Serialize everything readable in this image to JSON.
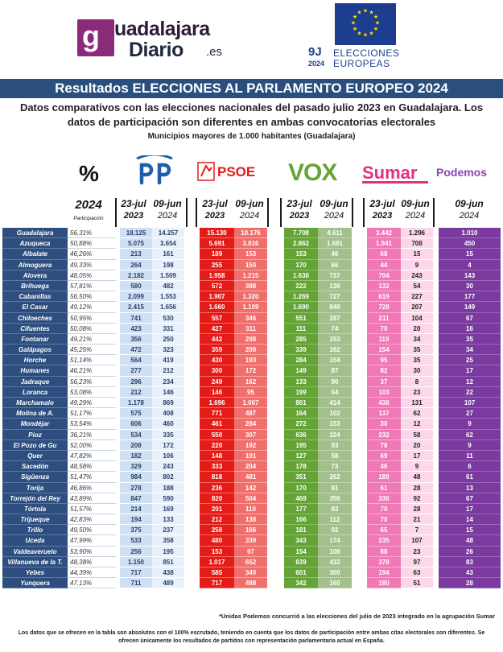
{
  "brand": {
    "g_letter": "g",
    "name_top": "uadalajara",
    "name_bottom": "Diario",
    "tld": ".es"
  },
  "election_logo": {
    "date": "9J",
    "year": "2024",
    "line1": "ELECCIONES",
    "line2": "EUROPEAS"
  },
  "title": "Resultados ELECCIONES AL PARLAMENTO EUROPEO 2024",
  "subtitle": "Datos comparativos con las elecciones nacionales del pasado julio 2023 en Guadalajara. Los datos de participación son diferentes en ambas convocatorias electorales",
  "subtitle2": "Municipios mayores de 1.000 habitantes (Guadalajara)",
  "percent_symbol": "%",
  "parties": {
    "pp": "PP",
    "psoe": "PSOE",
    "vox": "VOX",
    "sumar": "Sumar",
    "podemos": "Podemos"
  },
  "headers": {
    "year": "2024",
    "participation": "Participación",
    "jul_top": "23-jul",
    "jul_bottom": "2023",
    "jun_top": "09-jun",
    "jun_bottom": "2024"
  },
  "colors": {
    "header_blue": "#2a4f7d",
    "pp_blue": "#1d5fab",
    "psoe_red": "#e31c17",
    "vox_green": "#64a436",
    "sumar_pink": "#e5307b",
    "podemos_purple": "#7b3a9f"
  },
  "rows": [
    {
      "mun": "Guadalajara",
      "part": "56,31%",
      "pp23": "18.125",
      "pp24": "14.257",
      "ps23": "15.130",
      "ps24": "10.176",
      "vx23": "7.708",
      "vx24": "4.611",
      "sm23": "3.442",
      "sm24": "1.296",
      "pd": "1.010"
    },
    {
      "mun": "Azuqueca",
      "part": "50,88%",
      "pp23": "5.075",
      "pp24": "3.654",
      "ps23": "5.691",
      "ps24": "3.816",
      "vx23": "2.862",
      "vx24": "1.681",
      "sm23": "1.941",
      "sm24": "708",
      "pd": "450"
    },
    {
      "mun": "Albalate",
      "part": "46,26%",
      "pp23": "213",
      "pp24": "161",
      "ps23": "189",
      "ps24": "153",
      "vx23": "153",
      "vx24": "46",
      "sm23": "68",
      "sm24": "15",
      "pd": "15"
    },
    {
      "mun": "Almoguera",
      "part": "49,33%",
      "pp23": "264",
      "pp24": "198",
      "ps23": "255",
      "ps24": "150",
      "vx23": "170",
      "vx24": "66",
      "sm23": "44",
      "sm24": "9",
      "pd": "4"
    },
    {
      "mun": "Alovera",
      "part": "48,05%",
      "pp23": "2.182",
      "pp24": "1.509",
      "ps23": "1.958",
      "ps24": "1.215",
      "vx23": "1.638",
      "vx24": "737",
      "sm23": "704",
      "sm24": "243",
      "pd": "143"
    },
    {
      "mun": "Brihuega",
      "part": "57,81%",
      "pp23": "580",
      "pp24": "482",
      "ps23": "572",
      "ps24": "388",
      "vx23": "222",
      "vx24": "136",
      "sm23": "132",
      "sm24": "54",
      "pd": "30"
    },
    {
      "mun": "Cabanillas",
      "part": "56,50%",
      "pp23": "2.099",
      "pp24": "1.553",
      "ps23": "1.907",
      "ps24": "1.320",
      "vx23": "1.269",
      "vx24": "727",
      "sm23": "619",
      "sm24": "227",
      "pd": "177"
    },
    {
      "mun": "El Casar",
      "part": "49,12%",
      "pp23": "2.415",
      "pp24": "1.656",
      "ps23": "1.660",
      "ps24": "1.109",
      "vx23": "1.690",
      "vx24": "848",
      "sm23": "728",
      "sm24": "207",
      "pd": "149"
    },
    {
      "mun": "Chiloeches",
      "part": "50,95%",
      "pp23": "741",
      "pp24": "530",
      "ps23": "557",
      "ps24": "346",
      "vx23": "551",
      "vx24": "287",
      "sm23": "211",
      "sm24": "104",
      "pd": "67"
    },
    {
      "mun": "Cifuentes",
      "part": "50,08%",
      "pp23": "423",
      "pp24": "331",
      "ps23": "427",
      "ps24": "311",
      "vx23": "111",
      "vx24": "74",
      "sm23": "70",
      "sm24": "20",
      "pd": "16"
    },
    {
      "mun": "Fontanar",
      "part": "49,21%",
      "pp23": "356",
      "pp24": "250",
      "ps23": "442",
      "ps24": "298",
      "vx23": "285",
      "vx24": "153",
      "sm23": "119",
      "sm24": "34",
      "pd": "35"
    },
    {
      "mun": "Galápagos",
      "part": "45,25%",
      "pp23": "472",
      "pp24": "323",
      "ps23": "359",
      "ps24": "208",
      "vx23": "339",
      "vx24": "162",
      "sm23": "154",
      "sm24": "35",
      "pd": "34"
    },
    {
      "mun": "Horche",
      "part": "51,14%",
      "pp23": "564",
      "pp24": "419",
      "ps23": "430",
      "ps24": "193",
      "vx23": "284",
      "vx24": "154",
      "sm23": "95",
      "sm24": "35",
      "pd": "25"
    },
    {
      "mun": "Humanes",
      "part": "46,21%",
      "pp23": "277",
      "pp24": "212",
      "ps23": "300",
      "ps24": "172",
      "vx23": "149",
      "vx24": "87",
      "sm23": "82",
      "sm24": "30",
      "pd": "17"
    },
    {
      "mun": "Jadraque",
      "part": "56,23%",
      "pp23": "296",
      "pp24": "234",
      "ps23": "249",
      "ps24": "162",
      "vx23": "133",
      "vx24": "90",
      "sm23": "37",
      "sm24": "8",
      "pd": "12"
    },
    {
      "mun": "Loranca",
      "part": "53,08%",
      "pp23": "212",
      "pp24": "146",
      "ps23": "146",
      "ps24": "95",
      "vx23": "199",
      "vx24": "64",
      "sm23": "103",
      "sm24": "23",
      "pd": "22"
    },
    {
      "mun": "Marchamalo",
      "part": "49,29%",
      "pp23": "1.178",
      "pp24": "869",
      "ps23": "1.696",
      "ps24": "1.067",
      "vx23": "801",
      "vx24": "414",
      "sm23": "436",
      "sm24": "131",
      "pd": "107"
    },
    {
      "mun": "Molina de A.",
      "part": "51,17%",
      "pp23": "575",
      "pp24": "408",
      "ps23": "771",
      "ps24": "487",
      "vx23": "164",
      "vx24": "102",
      "sm23": "137",
      "sm24": "62",
      "pd": "27"
    },
    {
      "mun": "Mondéjar",
      "part": "53,54%",
      "pp23": "606",
      "pp24": "460",
      "ps23": "461",
      "ps24": "284",
      "vx23": "272",
      "vx24": "153",
      "sm23": "30",
      "sm24": "12",
      "pd": "9"
    },
    {
      "mun": "Pioz",
      "part": "36,21%",
      "pp23": "534",
      "pp24": "335",
      "ps23": "550",
      "ps24": "307",
      "vx23": "636",
      "vx24": "224",
      "sm23": "232",
      "sm24": "58",
      "pd": "62"
    },
    {
      "mun": "El Pozo de Gu",
      "part": "52,00%",
      "pp23": "208",
      "pp24": "172",
      "ps23": "220",
      "ps24": "192",
      "vx23": "195",
      "vx24": "93",
      "sm23": "78",
      "sm24": "20",
      "pd": "9"
    },
    {
      "mun": "Quer",
      "part": "47,82%",
      "pp23": "182",
      "pp24": "106",
      "ps23": "148",
      "ps24": "101",
      "vx23": "127",
      "vx24": "58",
      "sm23": "69",
      "sm24": "17",
      "pd": "11"
    },
    {
      "mun": "Sacedón",
      "part": "48,58%",
      "pp23": "329",
      "pp24": "243",
      "ps23": "333",
      "ps24": "204",
      "vx23": "178",
      "vx24": "73",
      "sm23": "46",
      "sm24": "9",
      "pd": "6"
    },
    {
      "mun": "Sigüenza",
      "part": "51,47%",
      "pp23": "984",
      "pp24": "802",
      "ps23": "818",
      "ps24": "481",
      "vx23": "351",
      "vx24": "262",
      "sm23": "189",
      "sm24": "48",
      "pd": "61"
    },
    {
      "mun": "Torija",
      "part": "46,86%",
      "pp23": "278",
      "pp24": "188",
      "ps23": "236",
      "ps24": "142",
      "vx23": "170",
      "vx24": "81",
      "sm23": "61",
      "sm24": "28",
      "pd": "13"
    },
    {
      "mun": "Torrejón del Rey",
      "part": "43,89%",
      "pp23": "847",
      "pp24": "590",
      "ps23": "820",
      "ps24": "504",
      "vx23": "469",
      "vx24": "356",
      "sm23": "336",
      "sm24": "92",
      "pd": "67"
    },
    {
      "mun": "Tórtola",
      "part": "51,57%",
      "pp23": "214",
      "pp24": "169",
      "ps23": "201",
      "ps24": "110",
      "vx23": "177",
      "vx24": "83",
      "sm23": "70",
      "sm24": "28",
      "pd": "17"
    },
    {
      "mun": "Trijueque",
      "part": "42,83%",
      "pp23": "194",
      "pp24": "133",
      "ps23": "212",
      "ps24": "138",
      "vx23": "166",
      "vx24": "112",
      "sm23": "70",
      "sm24": "21",
      "pd": "14"
    },
    {
      "mun": "Trillo",
      "part": "49,50%",
      "pp23": "375",
      "pp24": "237",
      "ps23": "258",
      "ps24": "166",
      "vx23": "181",
      "vx24": "92",
      "sm23": "65",
      "sm24": "7",
      "pd": "15"
    },
    {
      "mun": "Uceda",
      "part": "47,99%",
      "pp23": "533",
      "pp24": "358",
      "ps23": "480",
      "ps24": "339",
      "vx23": "343",
      "vx24": "174",
      "sm23": "235",
      "sm24": "107",
      "pd": "48"
    },
    {
      "mun": "Valdeaveruelo",
      "part": "53,90%",
      "pp23": "256",
      "pp24": "195",
      "ps23": "153",
      "ps24": "97",
      "vx23": "154",
      "vx24": "108",
      "sm23": "88",
      "sm24": "23",
      "pd": "26"
    },
    {
      "mun": "Villanueva de la T.",
      "part": "48,38%",
      "pp23": "1.150",
      "pp24": "851",
      "ps23": "1.017",
      "ps24": "652",
      "vx23": "839",
      "vx24": "432",
      "sm23": "378",
      "sm24": "97",
      "pd": "83"
    },
    {
      "mun": "Yebes",
      "part": "44,39%",
      "pp23": "717",
      "pp24": "438",
      "ps23": "585",
      "ps24": "349",
      "vx23": "601",
      "vx24": "300",
      "sm23": "194",
      "sm24": "63",
      "pd": "43"
    },
    {
      "mun": "Yunquera",
      "part": "47,13%",
      "pp23": "711",
      "pp24": "489",
      "ps23": "717",
      "ps24": "488",
      "vx23": "342",
      "vx24": "160",
      "sm23": "180",
      "sm24": "51",
      "pd": "28"
    }
  ],
  "note": "*Unidas Podemos concurrió a las elecciones del julio de 2023 integrado en la agrupación Sumar",
  "footer": "Los datos que se ofrecen en la tabla son absolutos con el 100% escrutado, teniendo en cuenta que los datos de participación entre ambas citas electorales son diferentes. Se ofrecen únicamente los resultados de partidos con representación parlamentaria actual en España."
}
